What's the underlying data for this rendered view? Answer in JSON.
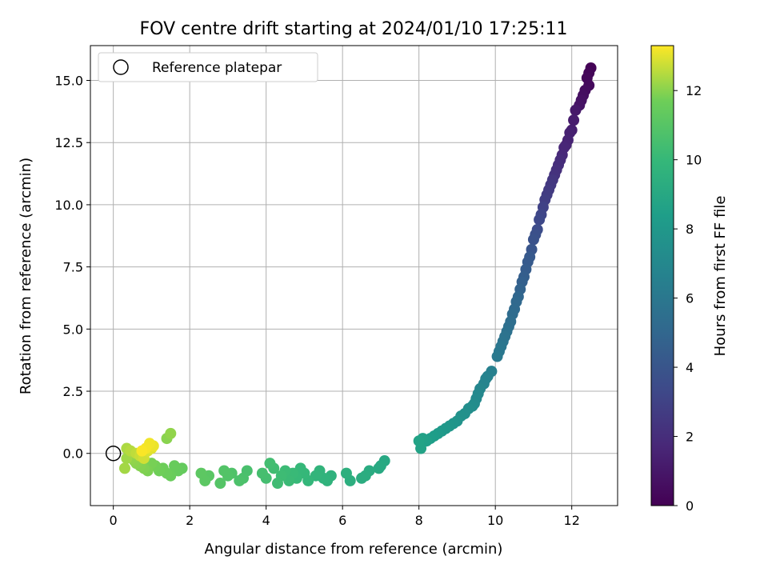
{
  "chart_data": {
    "type": "scatter",
    "title": "FOV centre drift starting at 2024/01/10 17:25:11",
    "xlabel": "Angular distance from reference (arcmin)",
    "ylabel": "Rotation from reference (arcmin)",
    "xlim": [
      -0.6,
      13.2
    ],
    "ylim": [
      -2.1,
      16.4
    ],
    "xticks": [
      0,
      2,
      4,
      6,
      8,
      10,
      12
    ],
    "yticks": [
      0.0,
      2.5,
      5.0,
      7.5,
      10.0,
      12.5,
      15.0
    ],
    "xtick_labels": [
      "0",
      "2",
      "4",
      "6",
      "8",
      "10",
      "12"
    ],
    "ytick_labels": [
      "0.0",
      "2.5",
      "5.0",
      "7.5",
      "10.0",
      "12.5",
      "15.0"
    ],
    "grid": true,
    "legend": {
      "position": "top-left",
      "entries": [
        "Reference platepar"
      ]
    },
    "colorbar": {
      "label": "Hours from first FF file",
      "colormap": "viridis",
      "range": [
        0,
        13.3
      ],
      "ticks": [
        0,
        2,
        4,
        6,
        8,
        10,
        12
      ],
      "tick_labels": [
        "0",
        "2",
        "4",
        "6",
        "8",
        "10",
        "12"
      ]
    },
    "reference_point": {
      "x": 0,
      "y": 0,
      "marker": "open-circle",
      "edge_color": "#000000"
    },
    "series": [
      {
        "color_by": "hours",
        "x": [
          12.5,
          12.45,
          12.4,
          12.45,
          12.35,
          12.3,
          12.25,
          12.2,
          12.1,
          12.05,
          12.0,
          11.95,
          11.9,
          11.85,
          11.8,
          11.75,
          11.7,
          11.65,
          11.6,
          11.55,
          11.5,
          11.45,
          11.4,
          11.35,
          11.3,
          11.25,
          11.2,
          11.15,
          11.1,
          11.05,
          11.0,
          10.95,
          10.9,
          10.85,
          10.8,
          10.75,
          10.7,
          10.65,
          10.6,
          10.55,
          10.5,
          10.45,
          10.4,
          10.35,
          10.3,
          10.25,
          10.2,
          10.15,
          10.1,
          10.05,
          9.9,
          9.8,
          9.75,
          9.7,
          9.6,
          9.55,
          9.5,
          9.45,
          9.4,
          9.3,
          9.2,
          9.1,
          9.0,
          8.9,
          8.8,
          8.7,
          8.6,
          8.5,
          8.4,
          8.3,
          8.2,
          8.1,
          8.05,
          8.0,
          7.1,
          7.0,
          6.95,
          6.7,
          6.6,
          6.5,
          6.2,
          6.1,
          5.7,
          5.6,
          5.5,
          5.4,
          5.3,
          5.1,
          5.0,
          4.9,
          4.8,
          4.7,
          4.6,
          4.5,
          4.4,
          4.3,
          4.2,
          4.1,
          4.0,
          3.9,
          3.5,
          3.4,
          3.3,
          3.1,
          3.0,
          2.9,
          2.8,
          2.5,
          2.4,
          2.3,
          1.8,
          1.7,
          1.6,
          1.5,
          1.4,
          1.3,
          1.2,
          1.1,
          1.0,
          0.9,
          0.8,
          0.7,
          0.6,
          0.55,
          0.5,
          0.45,
          0.4,
          0.35,
          0.3,
          0.35,
          0.45,
          0.6,
          0.7,
          0.8,
          0.9,
          1.0,
          1.05,
          0.95,
          0.85,
          0.75,
          1.4,
          1.5
        ],
        "y": [
          15.5,
          15.3,
          15.1,
          14.8,
          14.6,
          14.4,
          14.2,
          14.0,
          13.8,
          13.4,
          13.0,
          12.9,
          12.6,
          12.4,
          12.3,
          12.0,
          11.8,
          11.6,
          11.4,
          11.2,
          11.0,
          10.8,
          10.6,
          10.4,
          10.2,
          9.9,
          9.6,
          9.4,
          9.0,
          8.8,
          8.6,
          8.2,
          7.9,
          7.7,
          7.4,
          7.1,
          6.9,
          6.6,
          6.3,
          6.1,
          5.8,
          5.6,
          5.3,
          5.1,
          4.9,
          4.7,
          4.5,
          4.3,
          4.1,
          3.9,
          3.3,
          3.1,
          3.0,
          2.8,
          2.6,
          2.4,
          2.2,
          2.0,
          1.9,
          1.8,
          1.6,
          1.5,
          1.3,
          1.2,
          1.1,
          1.0,
          0.9,
          0.8,
          0.7,
          0.6,
          0.5,
          0.6,
          0.2,
          0.5,
          -0.3,
          -0.5,
          -0.6,
          -0.7,
          -0.9,
          -1.0,
          -1.1,
          -0.8,
          -0.9,
          -1.1,
          -1.0,
          -0.7,
          -0.9,
          -1.1,
          -0.8,
          -0.6,
          -1.0,
          -0.8,
          -1.1,
          -0.7,
          -0.9,
          -1.2,
          -0.6,
          -0.4,
          -1.0,
          -0.8,
          -0.7,
          -1.0,
          -1.1,
          -0.8,
          -0.9,
          -0.7,
          -1.2,
          -0.9,
          -1.1,
          -0.8,
          -0.6,
          -0.7,
          -0.5,
          -0.9,
          -0.8,
          -0.6,
          -0.7,
          -0.5,
          -0.4,
          -0.7,
          -0.6,
          -0.5,
          -0.4,
          -0.3,
          -0.2,
          0.0,
          0.1,
          -0.2,
          -0.6,
          0.2,
          0.1,
          0.0,
          -0.1,
          -0.2,
          0.1,
          0.2,
          0.3,
          0.4,
          0.2,
          0.1,
          0.6,
          0.8
        ],
        "hours": [
          0.1,
          0.2,
          0.3,
          0.4,
          0.5,
          0.6,
          0.7,
          0.8,
          1.0,
          1.2,
          1.3,
          1.4,
          1.5,
          1.6,
          1.7,
          1.8,
          1.9,
          2.0,
          2.1,
          2.2,
          2.4,
          2.5,
          2.6,
          2.7,
          2.8,
          3.0,
          3.2,
          3.3,
          3.5,
          3.7,
          3.8,
          4.0,
          4.2,
          4.3,
          4.4,
          4.5,
          4.6,
          4.8,
          5.0,
          5.1,
          5.2,
          5.3,
          5.4,
          5.5,
          5.6,
          5.7,
          5.8,
          5.9,
          6.0,
          6.1,
          6.5,
          6.6,
          6.7,
          6.8,
          6.9,
          7.0,
          7.1,
          7.2,
          7.3,
          7.4,
          7.5,
          7.6,
          7.7,
          7.8,
          7.9,
          8.0,
          8.1,
          8.2,
          8.3,
          8.4,
          8.5,
          8.6,
          8.65,
          8.7,
          9.0,
          9.05,
          9.1,
          9.2,
          9.25,
          9.3,
          9.4,
          9.45,
          9.6,
          9.65,
          9.7,
          9.75,
          9.8,
          9.9,
          9.95,
          10.0,
          10.05,
          10.1,
          10.15,
          10.2,
          10.25,
          10.3,
          10.35,
          10.4,
          10.45,
          10.5,
          10.6,
          10.65,
          10.7,
          10.8,
          10.85,
          10.9,
          10.95,
          11.1,
          11.15,
          11.2,
          11.4,
          11.45,
          11.5,
          11.55,
          11.6,
          11.65,
          11.7,
          11.75,
          11.8,
          11.85,
          11.9,
          11.95,
          12.0,
          12.05,
          12.1,
          12.15,
          12.2,
          12.25,
          12.3,
          12.4,
          12.5,
          12.6,
          12.7,
          12.8,
          12.9,
          13.0,
          13.1,
          13.15,
          13.2,
          13.25,
          12.0,
          12.1
        ]
      }
    ]
  }
}
